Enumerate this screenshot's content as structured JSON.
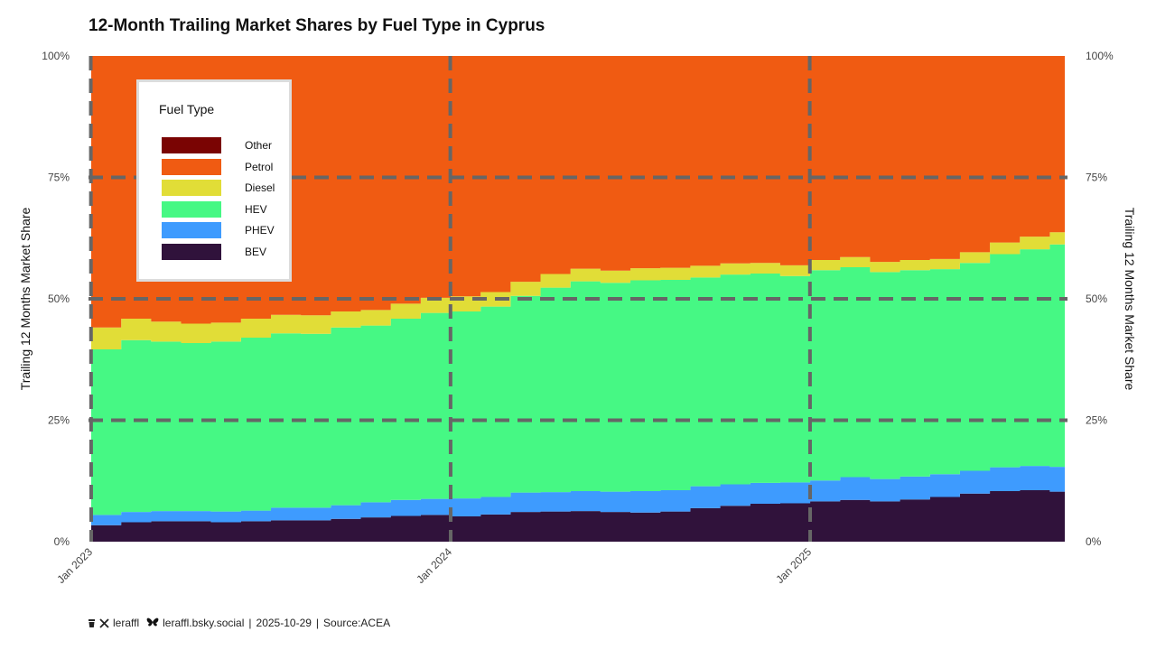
{
  "title": "12-Month Trailing Market Shares by Fuel Type in Cyprus",
  "footer": {
    "icon_cup": "coffee-icon",
    "icon_x": "x-logo-icon",
    "x_handle": "leraffl",
    "icon_bluesky": "bluesky-butterfly-icon",
    "bsky_handle": "leraffl.bsky.social",
    "separator": "|",
    "date": "2025-10-29",
    "source": "Source:ACEA"
  },
  "legend": {
    "title": "Fuel Type",
    "items": [
      {
        "label": "Other",
        "color": "#7a0403"
      },
      {
        "label": "Petrol",
        "color": "#f05b12"
      },
      {
        "label": "Diesel",
        "color": "#e1dd37"
      },
      {
        "label": "HEV",
        "color": "#46f884"
      },
      {
        "label": "PHEV",
        "color": "#3e9bfe"
      },
      {
        "label": "BEV",
        "color": "#30123b"
      }
    ]
  },
  "chart_data": {
    "type": "area",
    "title": "12-Month Trailing Market Shares by Fuel Type in Cyprus",
    "xlabel": "",
    "ylabel": "Trailing 12 Months Market Share",
    "ylabel_right": "Trailing 12 Months Market Share",
    "ylim": [
      0,
      100
    ],
    "y_ticks": [
      "0%",
      "25%",
      "50%",
      "75%",
      "100%"
    ],
    "y_tick_values": [
      0,
      25,
      50,
      75,
      100
    ],
    "x_tick_labels": [
      "Jan 2023",
      "Jan 2024",
      "Jan 2025"
    ],
    "x_tick_index": [
      0,
      12,
      24
    ],
    "grid": true,
    "stacked": true,
    "step": true,
    "x": [
      "2023-01",
      "2023-02",
      "2023-03",
      "2023-04",
      "2023-05",
      "2023-06",
      "2023-07",
      "2023-08",
      "2023-09",
      "2023-10",
      "2023-11",
      "2023-12",
      "2024-01",
      "2024-02",
      "2024-03",
      "2024-04",
      "2024-05",
      "2024-06",
      "2024-07",
      "2024-08",
      "2024-09",
      "2024-10",
      "2024-11",
      "2024-12",
      "2025-01",
      "2025-02",
      "2025-03",
      "2025-04",
      "2025-05",
      "2025-06",
      "2025-07",
      "2025-08",
      "2025-09"
    ],
    "series": [
      {
        "name": "BEV",
        "color": "#30123b",
        "values": [
          3.4,
          4.0,
          4.2,
          4.2,
          4.0,
          4.2,
          4.4,
          4.4,
          4.7,
          5.0,
          5.3,
          5.5,
          5.2,
          5.6,
          6.1,
          6.2,
          6.3,
          6.1,
          6.0,
          6.2,
          6.9,
          7.4,
          7.8,
          7.9,
          8.3,
          8.6,
          8.3,
          8.7,
          9.2,
          9.9,
          10.4,
          10.6,
          10.3
        ]
      },
      {
        "name": "PHEV",
        "color": "#3e9bfe",
        "values": [
          2.1,
          2.1,
          2.1,
          2.1,
          2.2,
          2.2,
          2.6,
          2.6,
          2.8,
          3.1,
          3.3,
          3.3,
          3.7,
          3.6,
          4.0,
          4.0,
          4.1,
          4.2,
          4.4,
          4.4,
          4.5,
          4.4,
          4.3,
          4.3,
          4.3,
          4.7,
          4.6,
          4.7,
          4.7,
          4.7,
          4.9,
          5.0,
          5.1
        ]
      },
      {
        "name": "HEV",
        "color": "#46f884",
        "values": [
          34.1,
          35.4,
          34.9,
          34.6,
          35.0,
          35.6,
          35.9,
          35.8,
          36.6,
          36.4,
          37.3,
          38.3,
          38.5,
          39.2,
          40.5,
          42.1,
          43.2,
          43.0,
          43.4,
          43.3,
          43.0,
          43.2,
          43.1,
          42.5,
          43.3,
          43.2,
          42.6,
          42.5,
          42.2,
          42.8,
          43.9,
          44.6,
          45.8
        ]
      },
      {
        "name": "Diesel",
        "color": "#e1dd37",
        "values": [
          4.5,
          4.4,
          4.1,
          4.0,
          3.9,
          3.9,
          3.8,
          3.8,
          3.3,
          3.2,
          3.1,
          3.1,
          3.1,
          3.0,
          2.9,
          2.8,
          2.6,
          2.5,
          2.5,
          2.5,
          2.4,
          2.3,
          2.2,
          2.2,
          2.1,
          2.1,
          2.1,
          2.1,
          2.1,
          2.2,
          2.4,
          2.6,
          2.5
        ]
      },
      {
        "name": "Petrol",
        "color": "#f05b12",
        "values": [
          55.9,
          54.1,
          54.7,
          55.1,
          54.9,
          54.1,
          53.3,
          53.4,
          52.6,
          52.3,
          51.0,
          49.8,
          49.5,
          48.6,
          46.5,
          44.9,
          43.8,
          44.2,
          43.7,
          43.6,
          43.2,
          42.7,
          42.6,
          43.1,
          42.0,
          41.4,
          42.4,
          42.0,
          41.8,
          40.4,
          38.4,
          37.2,
          36.3
        ]
      },
      {
        "name": "Other",
        "color": "#7a0403",
        "values": [
          0,
          0,
          0,
          0,
          0,
          0,
          0,
          0,
          0,
          0,
          0,
          0,
          0,
          0,
          0,
          0,
          0,
          0,
          0,
          0,
          0,
          0,
          0,
          0,
          0,
          0,
          0,
          0,
          0,
          0,
          0,
          0,
          0
        ]
      }
    ]
  }
}
